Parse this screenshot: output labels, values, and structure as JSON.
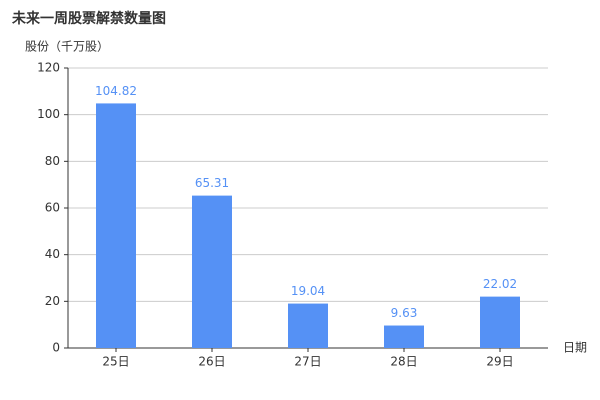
{
  "chart_data": {
    "type": "bar",
    "title": "未来一周股票解禁数量图",
    "y_label": "股份（千万股）",
    "x_label": "日期",
    "categories": [
      "25日",
      "26日",
      "27日",
      "28日",
      "29日"
    ],
    "values": [
      104.82,
      65.31,
      19.04,
      9.63,
      22.02
    ],
    "color": "#5591f5",
    "ylim": [
      0,
      120
    ],
    "yticks": [
      0,
      20,
      40,
      60,
      80,
      100,
      120
    ],
    "grid": true,
    "show_values": true
  }
}
